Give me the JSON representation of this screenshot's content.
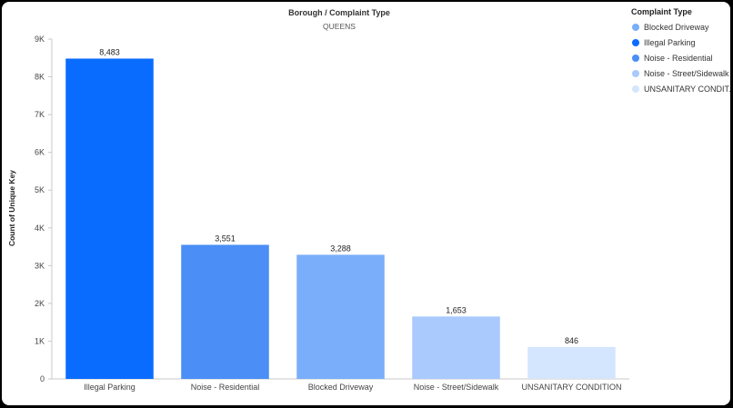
{
  "chart_data": {
    "type": "bar",
    "title": "Borough / Complaint Type",
    "subtitle": "QUEENS",
    "ylabel": "Count of Unique Key",
    "xlabel": "",
    "ylim": [
      0,
      9000
    ],
    "yticks": [
      {
        "value": 0,
        "label": "0"
      },
      {
        "value": 1000,
        "label": "1K"
      },
      {
        "value": 2000,
        "label": "2K"
      },
      {
        "value": 3000,
        "label": "3K"
      },
      {
        "value": 4000,
        "label": "4K"
      },
      {
        "value": 5000,
        "label": "5K"
      },
      {
        "value": 6000,
        "label": "6K"
      },
      {
        "value": 7000,
        "label": "7K"
      },
      {
        "value": 8000,
        "label": "8K"
      },
      {
        "value": 9000,
        "label": "9K"
      }
    ],
    "categories": [
      "Illegal Parking",
      "Noise - Residential",
      "Blocked Driveway",
      "Noise - Street/Sidewalk",
      "UNSANITARY CONDITION"
    ],
    "values": [
      8483,
      3551,
      3288,
      1653,
      846
    ],
    "value_labels": [
      "8,483",
      "3,551",
      "3,288",
      "1,653",
      "846"
    ],
    "colors": [
      "#0a6cff",
      "#4a8ef6",
      "#7aaefa",
      "#aac9fc",
      "#d3e6fd"
    ],
    "legend": {
      "title": "Complaint Type",
      "position": "top-right",
      "entries": [
        {
          "label": "Blocked Driveway",
          "color": "#7aaefa"
        },
        {
          "label": "Illegal Parking",
          "color": "#0a6cff"
        },
        {
          "label": "Noise - Residential",
          "color": "#4a8ef6"
        },
        {
          "label": "Noise - Street/Sidewalk",
          "color": "#aac9fc"
        },
        {
          "label": "UNSANITARY CONDIT...",
          "color": "#d3e6fd"
        }
      ]
    }
  }
}
